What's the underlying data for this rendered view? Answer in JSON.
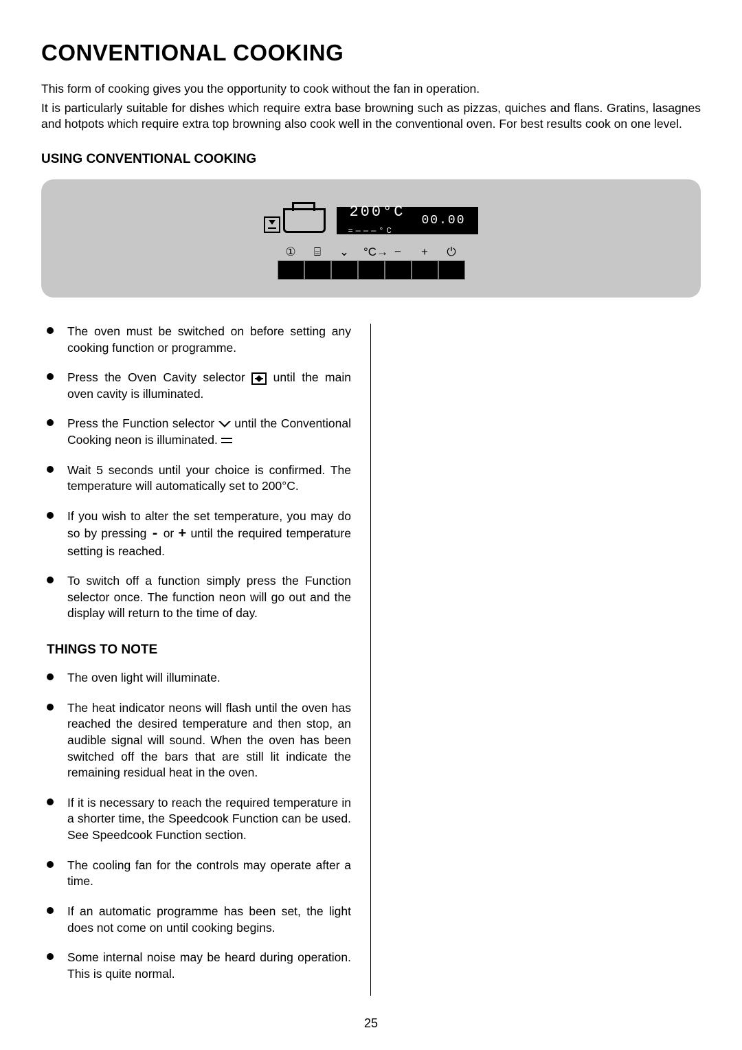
{
  "title": "CONVENTIONAL COOKING",
  "intro": {
    "p1": "This form of cooking gives you the opportunity to cook without the fan in operation.",
    "p2": "It is particularly suitable for dishes which require extra base browning such as pizzas, quiches and flans.  Gratins, lasagnes and hotpots which require extra top browning also cook well in the conventional oven.  For best results cook on one level."
  },
  "heading_using": "USING CONVENTIONAL COOKING",
  "display": {
    "temp": "200°C",
    "sub": "=———°C",
    "clock": "00.00",
    "button_icons": [
      "①",
      "⌸",
      "⌄",
      "°C→",
      "−",
      "+",
      "⏻"
    ],
    "background_color": "#c7c7c7",
    "lcd_bg": "#000000",
    "lcd_fg": "#ffffff"
  },
  "instructions": [
    {
      "text_a": "The oven must be switched on before setting any cooking function or programme."
    },
    {
      "text_a": "Press the Oven Cavity selector ",
      "icon": "cavity",
      "text_b": " until the main oven cavity is illuminated."
    },
    {
      "text_a": "Press the Function selector ",
      "icon": "chevron",
      "text_b": " until the Conventional Cooking neon is illuminated. ",
      "icon2": "equals"
    },
    {
      "text_a": "Wait 5 seconds until your choice is confirmed. The temperature will automatically set to 200°C."
    },
    {
      "text_a": "If you wish to alter the set temperature, you may do so by pressing ",
      "mono1": "-",
      "text_b": " or ",
      "mono2": "+",
      "text_c": " until the required temperature setting is reached."
    },
    {
      "text_a": "To switch off a function simply press the Function selector once.  The function neon will go out and the display will return to the time of day."
    }
  ],
  "heading_notes": "THINGS TO NOTE",
  "notes": [
    "The oven light will illuminate.",
    "The heat indicator neons will flash until the oven has reached the desired temperature and then stop, an audible signal will sound.  When the oven has been switched off the bars that are still lit indicate the remaining residual heat in the oven.",
    "If it is necessary to reach the required temperature in a shorter time, the Speedcook Function can be used.  See Speedcook Function section.",
    "The cooling fan for the controls may operate after a time.",
    "If an automatic programme has been set, the light does not come on until cooking begins.",
    "Some internal noise may be heard during operation.  This is quite normal."
  ],
  "page_number": "25",
  "colors": {
    "text": "#000000",
    "background": "#ffffff",
    "panel": "#c7c7c7"
  },
  "typography": {
    "title_fontsize": 33,
    "heading_fontsize": 19,
    "body_fontsize": 17.5,
    "font_family": "Arial"
  }
}
